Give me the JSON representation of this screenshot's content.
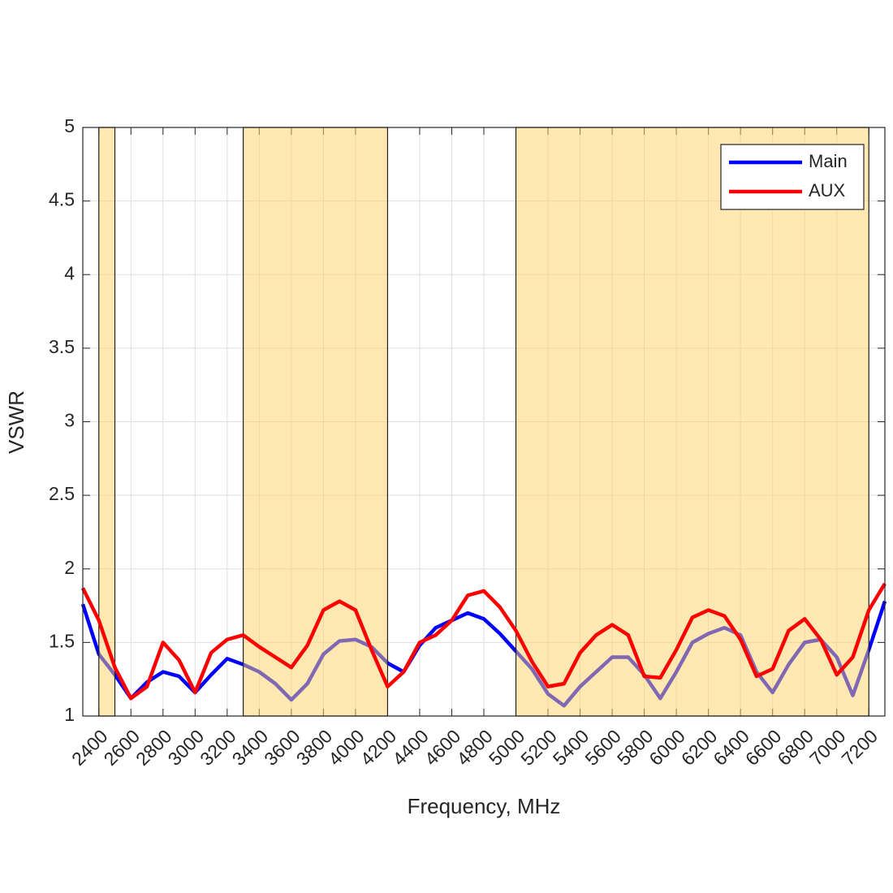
{
  "chart_data": {
    "type": "line",
    "xlabel": "Frequency, MHz",
    "ylabel": "VSWR",
    "xlim": [
      2300,
      7300
    ],
    "ylim": [
      1,
      5
    ],
    "xticks": [
      2400,
      2600,
      2800,
      3000,
      3200,
      3400,
      3600,
      3800,
      4000,
      4200,
      4400,
      4600,
      4800,
      5000,
      5200,
      5400,
      5600,
      5800,
      6000,
      6200,
      6400,
      6600,
      6800,
      7000,
      7200
    ],
    "yticks": [
      1,
      1.5,
      2,
      2.5,
      3,
      3.5,
      4,
      4.5,
      5
    ],
    "grid": true,
    "legend": "upper right",
    "bands": [
      [
        2400,
        2500
      ],
      [
        3300,
        4200
      ],
      [
        5000,
        7200
      ]
    ],
    "band_color": "#ffd166",
    "x": [
      2300,
      2400,
      2500,
      2600,
      2700,
      2800,
      2900,
      3000,
      3100,
      3200,
      3300,
      3400,
      3500,
      3600,
      3700,
      3800,
      3900,
      4000,
      4100,
      4200,
      4300,
      4400,
      4500,
      4600,
      4700,
      4800,
      4900,
      5000,
      5100,
      5200,
      5300,
      5400,
      5500,
      5600,
      5700,
      5800,
      5900,
      6000,
      6100,
      6200,
      6300,
      6400,
      6500,
      6600,
      6700,
      6800,
      6900,
      7000,
      7100,
      7200,
      7300
    ],
    "series": [
      {
        "name": "Main",
        "color": "#0000ff",
        "values": [
          1.76,
          1.42,
          1.28,
          1.12,
          1.23,
          1.3,
          1.27,
          1.16,
          1.28,
          1.39,
          1.35,
          1.3,
          1.22,
          1.11,
          1.22,
          1.42,
          1.51,
          1.52,
          1.47,
          1.36,
          1.3,
          1.48,
          1.6,
          1.65,
          1.7,
          1.66,
          1.56,
          1.44,
          1.32,
          1.15,
          1.07,
          1.2,
          1.3,
          1.4,
          1.4,
          1.28,
          1.12,
          1.3,
          1.5,
          1.56,
          1.6,
          1.55,
          1.3,
          1.16,
          1.35,
          1.5,
          1.52,
          1.4,
          1.14,
          1.45,
          1.78
        ]
      },
      {
        "name": "AUX",
        "color": "#ff0000",
        "values": [
          1.87,
          1.65,
          1.33,
          1.12,
          1.2,
          1.5,
          1.38,
          1.16,
          1.43,
          1.52,
          1.55,
          1.47,
          1.4,
          1.33,
          1.48,
          1.72,
          1.78,
          1.72,
          1.45,
          1.2,
          1.3,
          1.5,
          1.55,
          1.65,
          1.82,
          1.85,
          1.74,
          1.58,
          1.37,
          1.2,
          1.22,
          1.43,
          1.55,
          1.62,
          1.55,
          1.27,
          1.26,
          1.45,
          1.67,
          1.72,
          1.68,
          1.52,
          1.27,
          1.32,
          1.58,
          1.66,
          1.52,
          1.28,
          1.4,
          1.72,
          1.9
        ]
      }
    ]
  }
}
